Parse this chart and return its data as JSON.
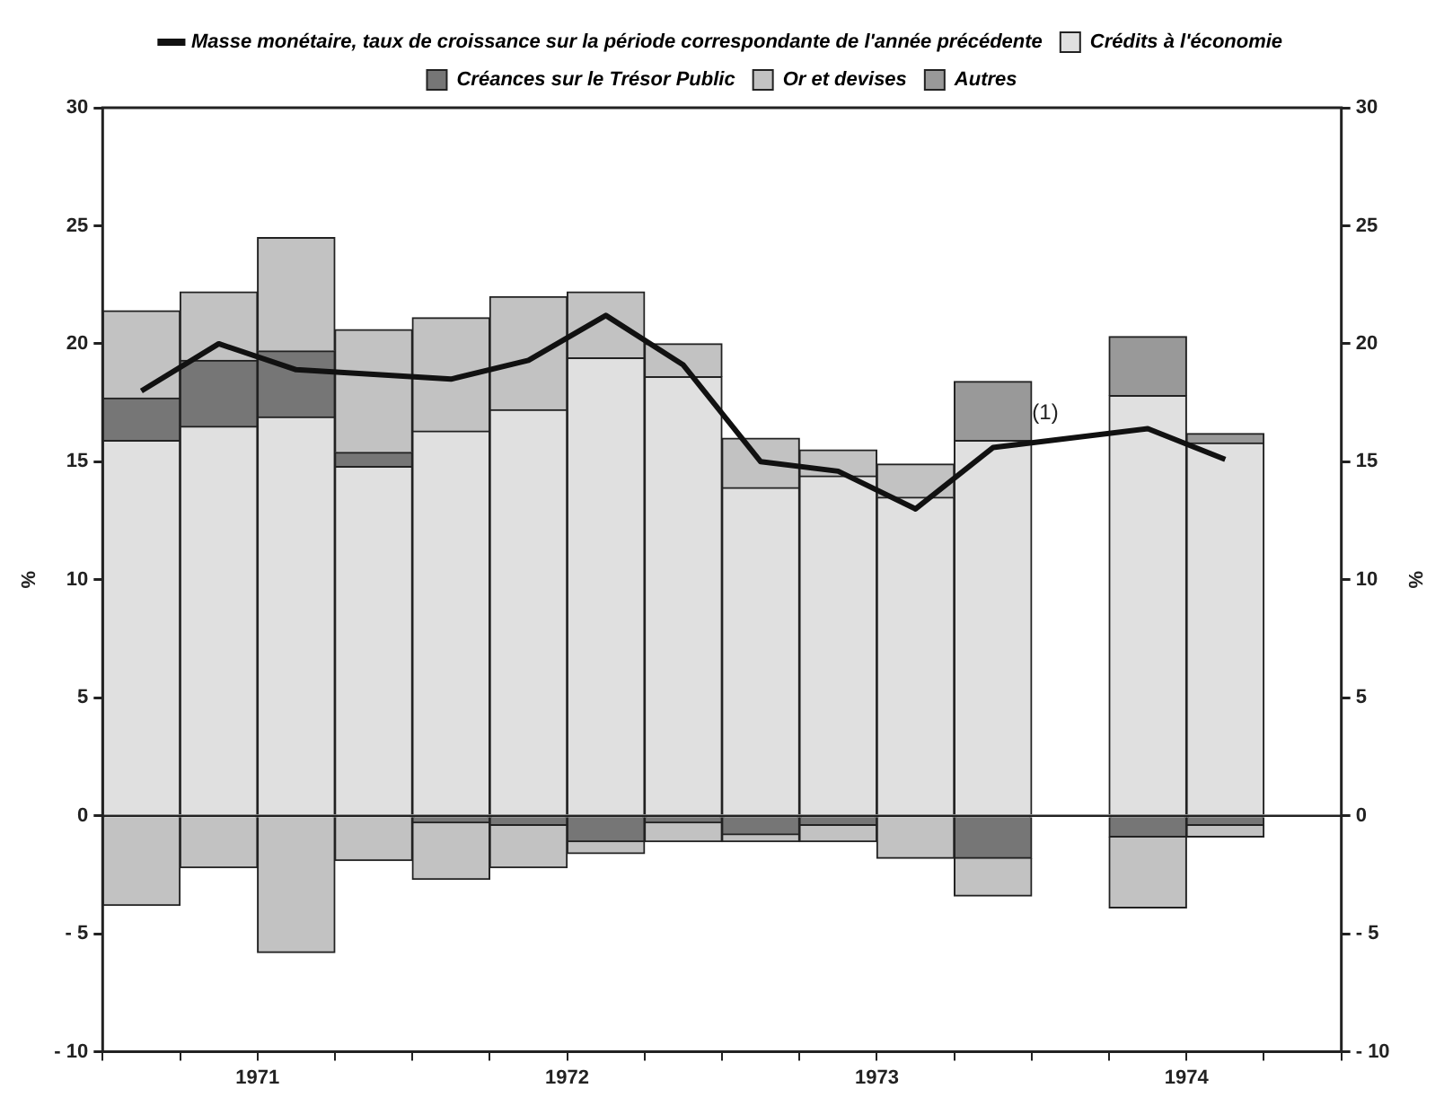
{
  "chart_data": {
    "type": "bar",
    "stacked": true,
    "ylabel": "%",
    "y2label": "%",
    "x": [
      1971.125,
      1971.375,
      1971.625,
      1971.875,
      1972.125,
      1972.375,
      1972.625,
      1972.875,
      1973.125,
      1973.375,
      1973.625,
      1973.875,
      1974.125,
      1974.375,
      1974.625
    ],
    "xlim": [
      1971,
      1975
    ],
    "xticks": [
      {
        "value": 1971,
        "label": null
      },
      {
        "value": 1971.25,
        "label": null
      },
      {
        "value": 1971.5,
        "label": "1971"
      },
      {
        "value": 1971.75,
        "label": null
      },
      {
        "value": 1972,
        "label": null
      },
      {
        "value": 1972.25,
        "label": null
      },
      {
        "value": 1972.5,
        "label": "1972"
      },
      {
        "value": 1972.75,
        "label": null
      },
      {
        "value": 1973,
        "label": null
      },
      {
        "value": 1973.25,
        "label": null
      },
      {
        "value": 1973.5,
        "label": "1973"
      },
      {
        "value": 1973.75,
        "label": null
      },
      {
        "value": 1974,
        "label": null
      },
      {
        "value": 1974.25,
        "label": null
      },
      {
        "value": 1974.5,
        "label": "1974"
      },
      {
        "value": 1974.75,
        "label": null
      },
      {
        "value": 1975,
        "label": null
      }
    ],
    "ylim": [
      -10,
      30
    ],
    "yticks": [
      {
        "value": -10,
        "label": "- 10"
      },
      {
        "value": -5,
        "label": "- 5"
      },
      0,
      5,
      10,
      15,
      20,
      25,
      30
    ],
    "y2lim": [
      -10,
      30
    ],
    "y2ticks": [
      {
        "value": -10,
        "label": "- 10"
      },
      {
        "value": -5,
        "label": "- 5"
      },
      0,
      5,
      10,
      15,
      20,
      25,
      30
    ],
    "series": [
      {
        "name": "Masse monétaire, taux de croissance sur la période correspondante de l'année précédente",
        "type": "line",
        "color": "#111111",
        "values": [
          18.0,
          20.0,
          18.9,
          18.7,
          18.5,
          19.3,
          21.2,
          19.1,
          15.0,
          14.6,
          13.0,
          15.6,
          null,
          16.4,
          15.1
        ]
      },
      {
        "name": "Crédits à l'économie",
        "color": "#e0e0e0",
        "values": [
          15.9,
          16.5,
          16.9,
          14.8,
          16.3,
          17.2,
          19.4,
          18.6,
          13.9,
          14.4,
          13.5,
          15.9,
          null,
          17.8,
          15.8
        ]
      },
      {
        "name": "Créances sur le Trésor Public",
        "color": "#767676",
        "values": [
          1.8,
          2.8,
          2.8,
          0.6,
          null,
          null,
          null,
          null,
          null,
          null,
          null,
          null,
          null,
          null,
          null
        ]
      },
      {
        "name": "Or et devises",
        "color": "#c2c2c2",
        "values": [
          3.7,
          2.9,
          4.8,
          5.2,
          4.8,
          4.8,
          2.8,
          1.4,
          2.1,
          1.1,
          1.4,
          null,
          null,
          null,
          null
        ]
      },
      {
        "name": "Autres",
        "color": "#999999",
        "values": [
          null,
          null,
          null,
          null,
          null,
          null,
          null,
          null,
          null,
          null,
          null,
          2.5,
          null,
          2.5,
          0.4
        ]
      },
      {
        "color": "#767676",
        "values": [
          null,
          null,
          null,
          null,
          -0.3,
          -0.4,
          -1.1,
          -0.3,
          -0.8,
          -0.4,
          null,
          -1.8,
          null,
          -0.9,
          -0.4
        ]
      },
      {
        "color": "#c2c2c2",
        "values": [
          -3.8,
          -2.2,
          -5.8,
          -1.9,
          -2.4,
          -1.8,
          -0.5,
          -0.8,
          -0.3,
          -0.7,
          -1.8,
          -1.6,
          null,
          -3.0,
          -0.5
        ]
      }
    ],
    "ref_lines": [
      {
        "axis": "y",
        "value": 0
      }
    ],
    "annotations": [
      "(1)"
    ],
    "legend": "top",
    "grid": false,
    "marker": "none",
    "line_style": "solid"
  }
}
